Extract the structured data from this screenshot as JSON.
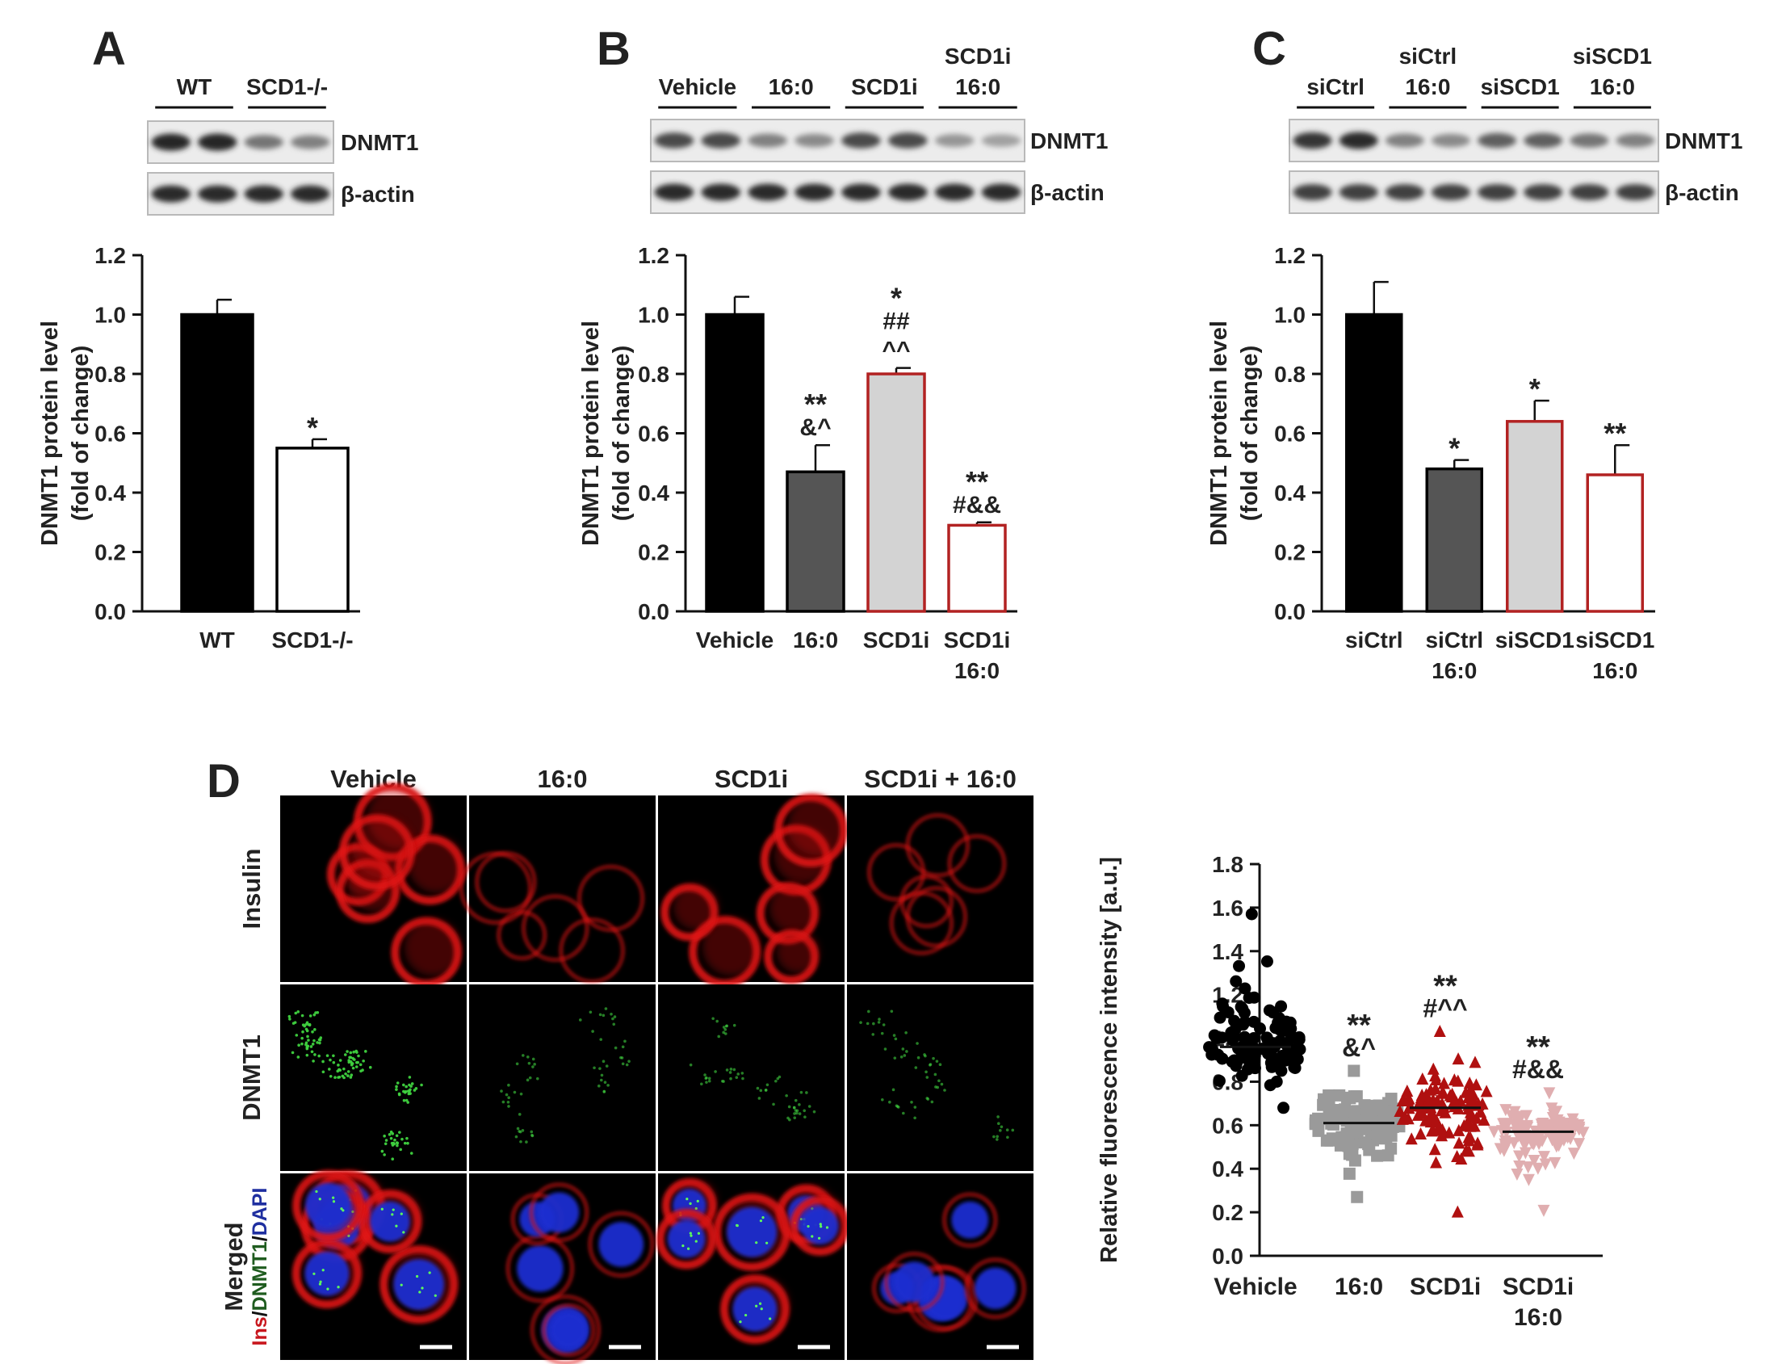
{
  "colors": {
    "black": "#000000",
    "dark_gray": "#555555",
    "light_gray": "#d3d3d3",
    "white_fill": "#ffffff",
    "red_edge": "#b22222",
    "scatter_black": "#000000",
    "scatter_gray": "#9a9a9a",
    "scatter_red": "#b01010",
    "scatter_pink": "#e0aeb0"
  },
  "blot_panels": [
    {
      "letter": "A",
      "groups": [
        {
          "label": "WT",
          "lines": [
            "WT"
          ]
        },
        {
          "label": "SCD1-/-",
          "lines": [
            "SCD1-/-"
          ]
        }
      ],
      "bands": {
        "top": "DNMT1",
        "bottom": "β-actin"
      },
      "top_intensity": [
        0.92,
        0.92,
        0.55,
        0.5
      ],
      "bottom_intensity": [
        0.9,
        0.9,
        0.9,
        0.9
      ]
    },
    {
      "letter": "B",
      "groups": [
        {
          "label": "Vehicle",
          "lines": [
            "Vehicle"
          ]
        },
        {
          "label": "16:0",
          "lines": [
            "16:0"
          ]
        },
        {
          "label": "SCD1i",
          "lines": [
            "SCD1i"
          ]
        },
        {
          "label": "SCD1i 16:0",
          "lines": [
            "SCD1i",
            "16:0"
          ]
        }
      ],
      "bands": {
        "top": "DNMT1",
        "bottom": "β-actin"
      },
      "top_intensity": [
        0.75,
        0.75,
        0.5,
        0.45,
        0.75,
        0.75,
        0.4,
        0.35
      ],
      "bottom_intensity": [
        0.9,
        0.9,
        0.9,
        0.9,
        0.9,
        0.9,
        0.9,
        0.9
      ]
    },
    {
      "letter": "C",
      "groups": [
        {
          "label": "siCtrl",
          "lines": [
            "siCtrl"
          ]
        },
        {
          "label": "siCtrl 16:0",
          "lines": [
            "siCtrl",
            "16:0"
          ]
        },
        {
          "label": "siSCD1",
          "lines": [
            "siSCD1"
          ]
        },
        {
          "label": "siSCD1 16:0",
          "lines": [
            "siSCD1",
            "16:0"
          ]
        }
      ],
      "bands": {
        "top": "DNMT1",
        "bottom": "β-actin"
      },
      "top_intensity": [
        0.85,
        0.9,
        0.5,
        0.45,
        0.65,
        0.65,
        0.55,
        0.5
      ],
      "bottom_intensity": [
        0.8,
        0.8,
        0.8,
        0.8,
        0.8,
        0.8,
        0.8,
        0.8
      ]
    }
  ],
  "chart_data": [
    {
      "panel": "A",
      "type": "bar",
      "categories": [
        [
          "WT"
        ],
        [
          "SCD1-/-"
        ]
      ],
      "values": [
        1.0,
        0.55
      ],
      "errors": [
        0.05,
        0.03
      ],
      "fills": [
        "black",
        "white_fill"
      ],
      "edges": [
        "black",
        "black"
      ],
      "annotations": [
        [],
        [
          "*"
        ]
      ],
      "ylabel": [
        "DNMT1 protein level",
        "(fold of change)"
      ],
      "ylim": [
        0,
        1.2
      ],
      "yticks": [
        "0.0",
        "0.2",
        "0.4",
        "0.6",
        "0.8",
        "1.0",
        "1.2"
      ]
    },
    {
      "panel": "B",
      "type": "bar",
      "categories": [
        [
          "Vehicle"
        ],
        [
          "16:0"
        ],
        [
          "SCD1i"
        ],
        [
          "SCD1i",
          "16:0"
        ]
      ],
      "values": [
        1.0,
        0.47,
        0.8,
        0.29
      ],
      "errors": [
        0.06,
        0.09,
        0.02,
        0.01
      ],
      "fills": [
        "black",
        "dark_gray",
        "light_gray",
        "white_fill"
      ],
      "edges": [
        "black",
        "black",
        "red_edge",
        "red_edge"
      ],
      "annotations": [
        [],
        [
          "**",
          "&^"
        ],
        [
          "*",
          "##",
          "^^"
        ],
        [
          "**",
          "#&&"
        ]
      ],
      "ylabel": [
        "DNMT1 protein level",
        "(fold of change)"
      ],
      "ylim": [
        0,
        1.2
      ],
      "yticks": [
        "0.0",
        "0.2",
        "0.4",
        "0.6",
        "0.8",
        "1.0",
        "1.2"
      ]
    },
    {
      "panel": "C",
      "type": "bar",
      "categories": [
        [
          "siCtrl"
        ],
        [
          "siCtrl",
          "16:0"
        ],
        [
          "siSCD1"
        ],
        [
          "siSCD1",
          "16:0"
        ]
      ],
      "values": [
        1.0,
        0.48,
        0.64,
        0.46
      ],
      "errors": [
        0.11,
        0.03,
        0.07,
        0.1
      ],
      "fills": [
        "black",
        "dark_gray",
        "light_gray",
        "white_fill"
      ],
      "edges": [
        "black",
        "black",
        "red_edge",
        "red_edge"
      ],
      "annotations": [
        [],
        [
          "*"
        ],
        [
          "*"
        ],
        [
          "**"
        ]
      ],
      "ylabel": [
        "DNMT1 protein level",
        "(fold of change)"
      ],
      "ylim": [
        0,
        1.2
      ],
      "yticks": [
        "0.0",
        "0.2",
        "0.4",
        "0.6",
        "0.8",
        "1.0",
        "1.2"
      ]
    },
    {
      "panel": "D",
      "type": "scatter",
      "categories": [
        [
          "Vehicle"
        ],
        [
          "16:0"
        ],
        [
          "SCD1i"
        ],
        [
          "SCD1i",
          "16:0"
        ]
      ],
      "means": [
        0.96,
        0.61,
        0.68,
        0.57
      ],
      "ranges": [
        [
          0.68,
          1.57
        ],
        [
          0.27,
          0.85
        ],
        [
          0.2,
          1.03
        ],
        [
          0.21,
          0.75
        ]
      ],
      "markers": [
        "circle",
        "square",
        "triangle-up",
        "triangle-down"
      ],
      "colors": [
        "scatter_black",
        "scatter_gray",
        "scatter_red",
        "scatter_pink"
      ],
      "n_points": 110,
      "annotations": [
        [],
        [
          "**",
          "&^"
        ],
        [
          "**",
          "#^^"
        ],
        [
          "**",
          "#&&"
        ]
      ],
      "ylabel": [
        "Relative fluorescence intensity [a.u.]"
      ],
      "ylim": [
        0,
        1.8
      ],
      "yticks": [
        "0.0",
        "0.2",
        "0.4",
        "0.6",
        "0.8",
        "1.0",
        "1.2",
        "1.4",
        "1.6",
        "1.8"
      ]
    }
  ],
  "microscopy": {
    "letter": "D",
    "columns": [
      "Vehicle",
      "16:0",
      "SCD1i",
      "SCD1i + 16:0"
    ],
    "rows": [
      {
        "label": "Insulin",
        "color": "#c8161d",
        "kind": "insulin"
      },
      {
        "label": "DNMT1",
        "color": "#1f5c1f",
        "kind": "dnmt1"
      },
      {
        "label": "Merged",
        "color": "#111111",
        "kind": "merged",
        "sublabel_parts": [
          {
            "t": "Ins",
            "c": "#c8161d"
          },
          {
            "t": "/",
            "c": "#111111"
          },
          {
            "t": "DNMT1",
            "c": "#1f5c1f"
          },
          {
            "t": "/",
            "c": "#111111"
          },
          {
            "t": "DAPI",
            "c": "#1f2fa0"
          }
        ]
      }
    ]
  }
}
